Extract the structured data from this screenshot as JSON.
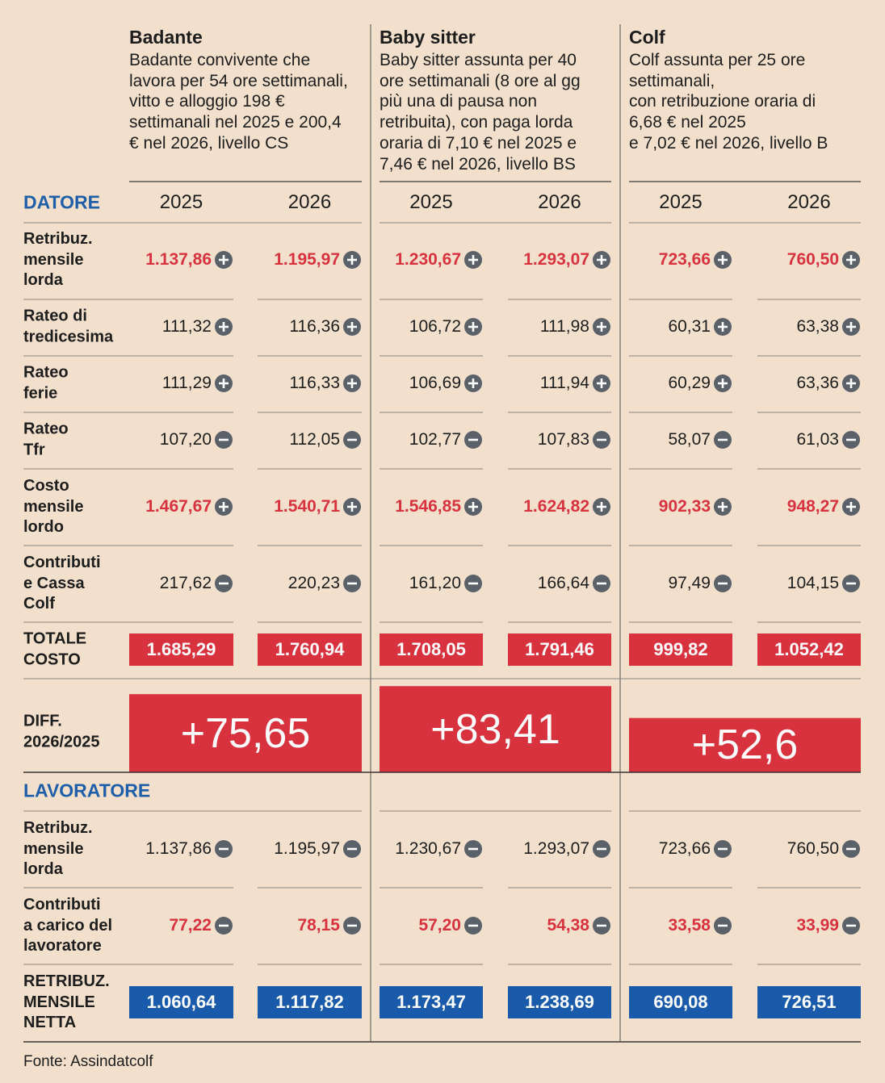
{
  "columns": [
    {
      "title": "Badante",
      "description": "Badante convivente che\nlavora per 54 ore settimanali,\nvitto e alloggio 198 €\nsettimanali nel 2025 e 200,4\n€ nel 2026, livello CS"
    },
    {
      "title": "Baby sitter",
      "description": "Baby sitter assunta per 40\nore settimanali (8 ore al gg\npiù una di pausa non\nretribuita), con paga lorda\noraria di 7,10 € nel 2025 e\n7,46 € nel 2026, livello BS"
    },
    {
      "title": "Colf",
      "description": "Colf assunta per 25 ore\nsettimanali,\ncon retribuzione oraria di\n6,68 € nel 2025\ne 7,02 € nel 2026, livello B"
    }
  ],
  "years": [
    "2025",
    "2026"
  ],
  "sections": [
    {
      "title": "DATORE",
      "rows": [
        {
          "label": "Retribuz.\nmensile\nlorda",
          "style": "red",
          "sign": "plus",
          "values": [
            "1.137,86",
            "1.195,97",
            "1.230,67",
            "1.293,07",
            "723,66",
            "760,50"
          ]
        },
        {
          "label": "Rateo di\ntredicesima",
          "style": "plain",
          "sign": "plus",
          "values": [
            "111,32",
            "116,36",
            "106,72",
            "111,98",
            "60,31",
            "63,38"
          ]
        },
        {
          "label": "Rateo\nferie",
          "style": "plain",
          "sign": "plus",
          "values": [
            "111,29",
            "116,33",
            "106,69",
            "111,94",
            "60,29",
            "63,36"
          ]
        },
        {
          "label": "Rateo\nTfr",
          "style": "plain",
          "sign": "minus",
          "values": [
            "107,20",
            "112,05",
            "102,77",
            "107,83",
            "58,07",
            "61,03"
          ]
        },
        {
          "label": "Costo\nmensile\nlordo",
          "style": "red",
          "sign": "plus",
          "values": [
            "1.467,67",
            "1.540,71",
            "1.546,85",
            "1.624,82",
            "902,33",
            "948,27"
          ]
        },
        {
          "label": "Contributi\ne Cassa\nColf",
          "style": "plain",
          "sign": "minus",
          "values": [
            "217,62",
            "220,23",
            "161,20",
            "166,64",
            "97,49",
            "104,15"
          ]
        },
        {
          "label": "TOTALE\nCOSTO",
          "style": "red-box",
          "values": [
            "1.685,29",
            "1.760,94",
            "1.708,05",
            "1.791,46",
            "999,82",
            "1.052,42"
          ]
        }
      ]
    },
    {
      "title": "LAVORATORE",
      "rows": [
        {
          "label": "Retribuz.\nmensile\nlorda",
          "style": "plain",
          "sign": "minus",
          "values": [
            "1.137,86",
            "1.195,97",
            "1.230,67",
            "1.293,07",
            "723,66",
            "760,50"
          ]
        },
        {
          "label": "Contributi\na carico del\nlavoratore",
          "style": "red",
          "sign": "minus",
          "values": [
            "77,22",
            "78,15",
            "57,20",
            "54,38",
            "33,58",
            "33,99"
          ]
        },
        {
          "label": "RETRIBUZ.\nMENSILE\nNETTA",
          "style": "blue-box",
          "values": [
            "1.060,64",
            "1.117,82",
            "1.173,47",
            "1.238,69",
            "690,08",
            "726,51"
          ]
        }
      ]
    }
  ],
  "diff": {
    "label": "DIFF.\n2026/2025",
    "values": [
      75.65,
      83.41,
      52.6
    ],
    "value_labels": [
      "+75,65",
      "+83,41",
      "+52,6"
    ]
  },
  "source": "Fonte: Assindatcolf"
}
